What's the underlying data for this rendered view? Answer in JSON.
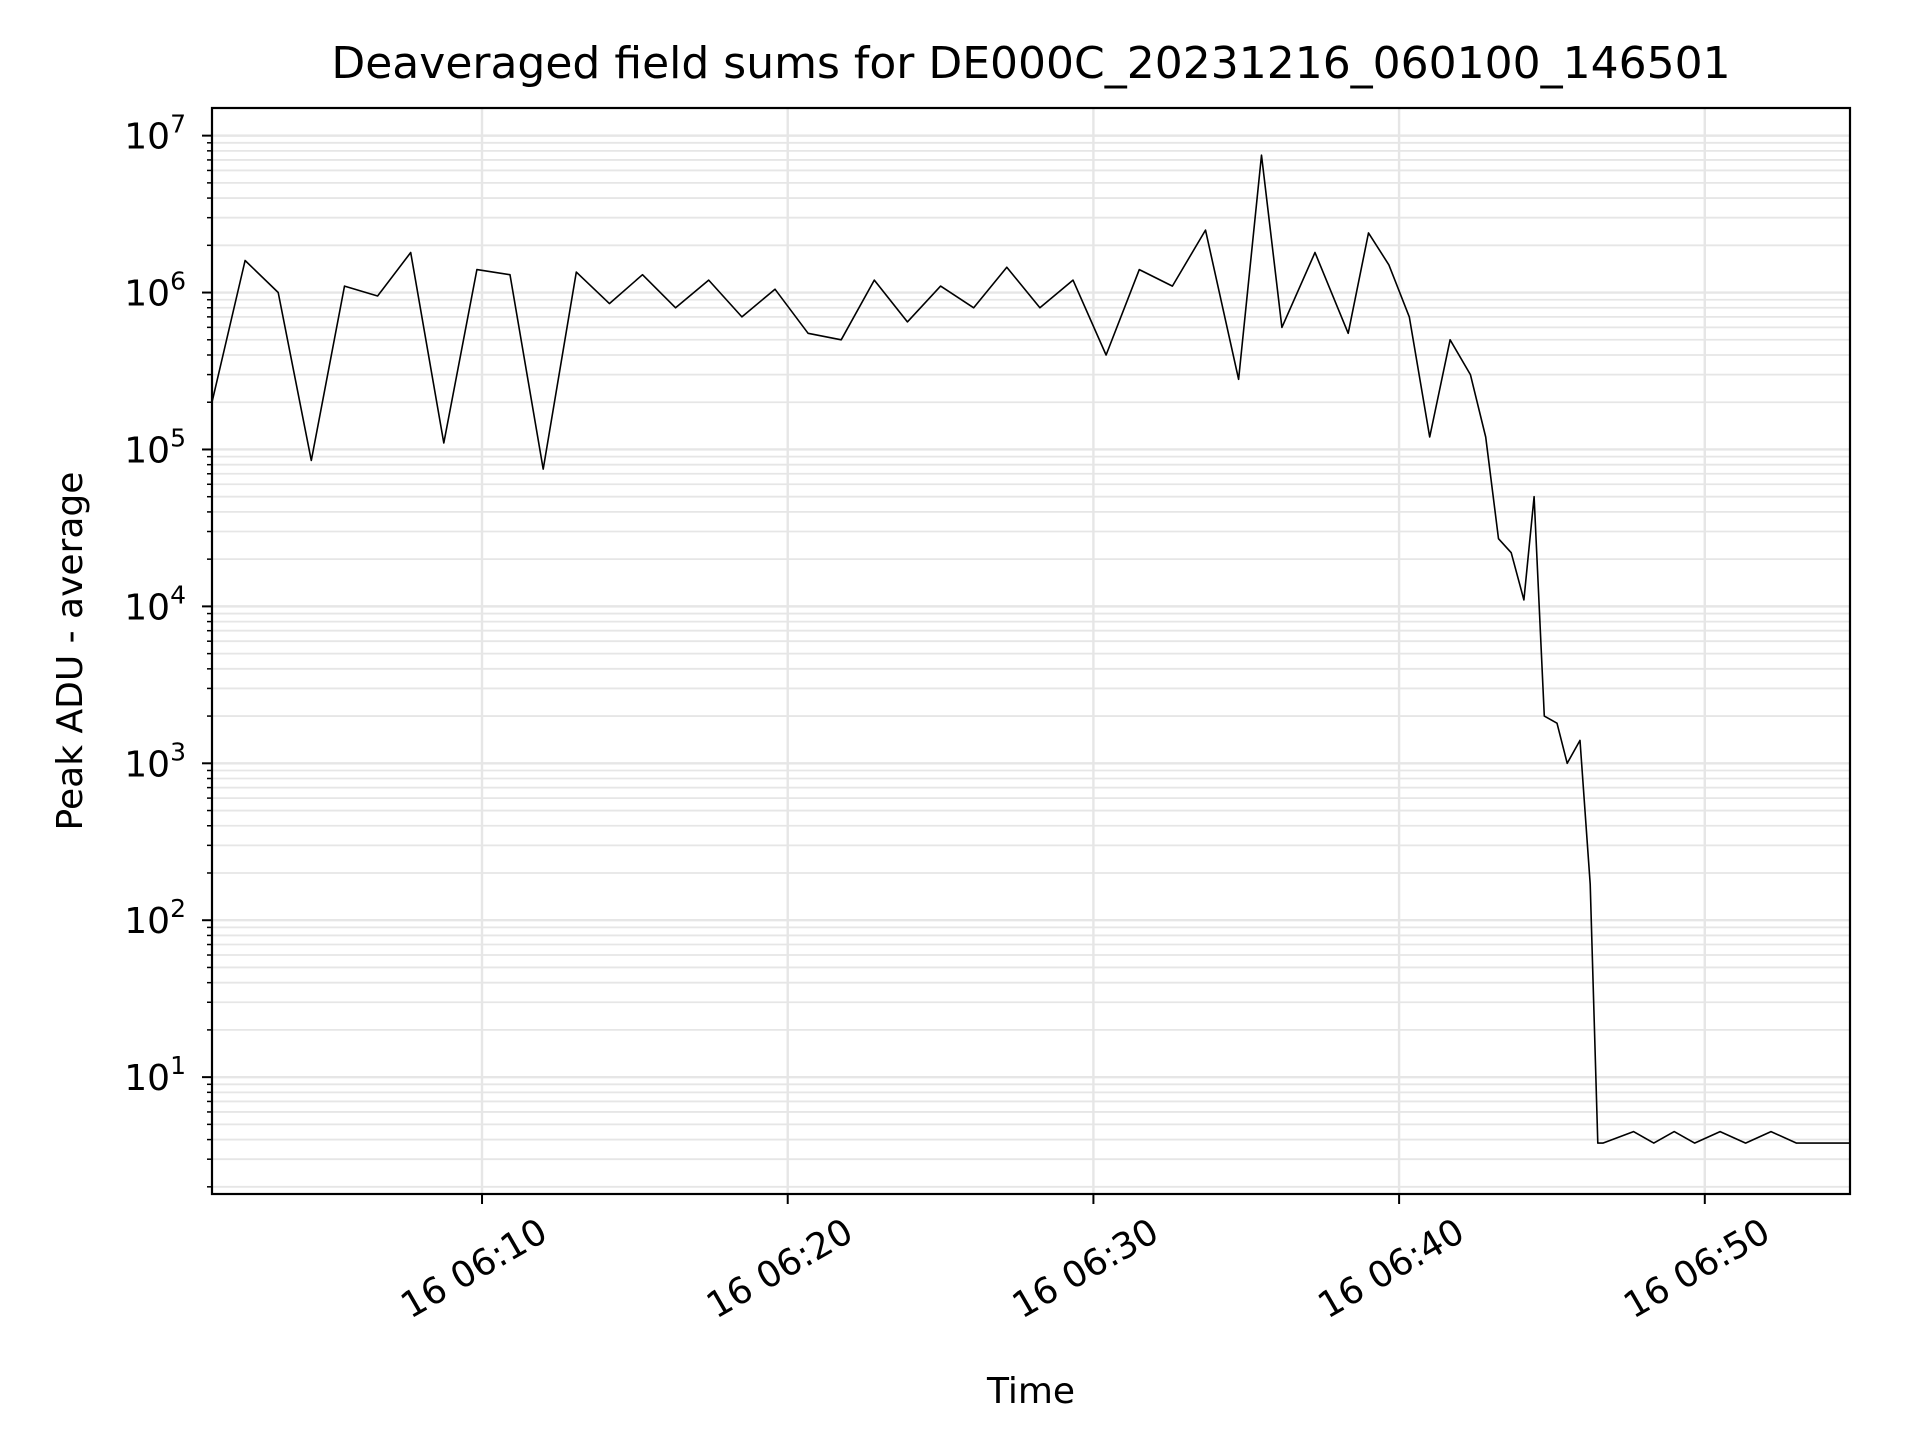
{
  "chart_data": {
    "type": "line",
    "title": "Deaveraged field sums for DE000C_20231216_060100_146501",
    "xlabel": "Time",
    "ylabel": "Peak ADU - average",
    "y_scale": "log",
    "ylim": [
      1.8,
      15000000
    ],
    "xlim": [
      "06:01:10",
      "06:54:45"
    ],
    "x_tick_labels": [
      "16 06:10",
      "16 06:20",
      "16 06:30",
      "16 06:40",
      "16 06:50"
    ],
    "x_ticks": [
      "06:10",
      "06:20",
      "06:30",
      "06:40",
      "06:50"
    ],
    "y_tick_labels": [
      {
        "base": "10",
        "exp": "1",
        "value": 10
      },
      {
        "base": "10",
        "exp": "2",
        "value": 100
      },
      {
        "base": "10",
        "exp": "3",
        "value": 1000
      },
      {
        "base": "10",
        "exp": "4",
        "value": 10000
      },
      {
        "base": "10",
        "exp": "5",
        "value": 100000
      },
      {
        "base": "10",
        "exp": "6",
        "value": 1000000
      },
      {
        "base": "10",
        "exp": "7",
        "value": 10000000
      }
    ],
    "grid": true,
    "line_color": "#000000",
    "grid_color": "#e6e6e6",
    "series": [
      {
        "x": [
          "06:01:10",
          "06:02:15",
          "06:03:20",
          "06:04:25",
          "06:05:30",
          "06:06:35",
          "06:07:40",
          "06:08:45",
          "06:09:50",
          "06:10:55",
          "06:12:00",
          "06:13:05",
          "06:14:10",
          "06:15:15",
          "06:16:20",
          "06:17:25",
          "06:18:30",
          "06:19:35",
          "06:20:40",
          "06:21:45",
          "06:22:50",
          "06:23:55",
          "06:25:00",
          "06:26:05",
          "06:27:10",
          "06:28:15",
          "06:29:20",
          "06:30:25",
          "06:31:30",
          "06:32:35",
          "06:33:40",
          "06:34:45",
          "06:35:30",
          "06:36:10",
          "06:37:15",
          "06:38:20",
          "06:39:00",
          "06:39:40",
          "06:40:20",
          "06:41:00",
          "06:41:40",
          "06:42:20",
          "06:42:50",
          "06:43:15",
          "06:43:40",
          "06:44:05",
          "06:44:25",
          "06:44:45",
          "06:45:10",
          "06:45:30",
          "06:45:55",
          "06:46:15",
          "06:46:30",
          "06:46:40",
          "06:47:40",
          "06:48:20",
          "06:49:00",
          "06:49:40",
          "06:50:30",
          "06:51:20",
          "06:52:10",
          "06:53:00",
          "06:54:45"
        ],
        "y": [
          200000,
          1600000,
          1000000,
          85000,
          1100000,
          950000,
          1800000,
          110000,
          1400000,
          1300000,
          75000,
          1350000,
          850000,
          1300000,
          800000,
          1200000,
          700000,
          1050000,
          550000,
          500000,
          1200000,
          650000,
          1100000,
          800000,
          1450000,
          800000,
          1200000,
          400000,
          1400000,
          1100000,
          2500000,
          280000,
          7500000,
          600000,
          1800000,
          550000,
          2400000,
          1500000,
          700000,
          120000,
          500000,
          300000,
          120000,
          27000,
          22000,
          11000,
          50000,
          2000,
          1800,
          1000,
          1400,
          170,
          3.8,
          3.8,
          4.5,
          3.8,
          4.5,
          3.8,
          4.5,
          3.8,
          4.5,
          3.8,
          3.8
        ]
      }
    ]
  }
}
